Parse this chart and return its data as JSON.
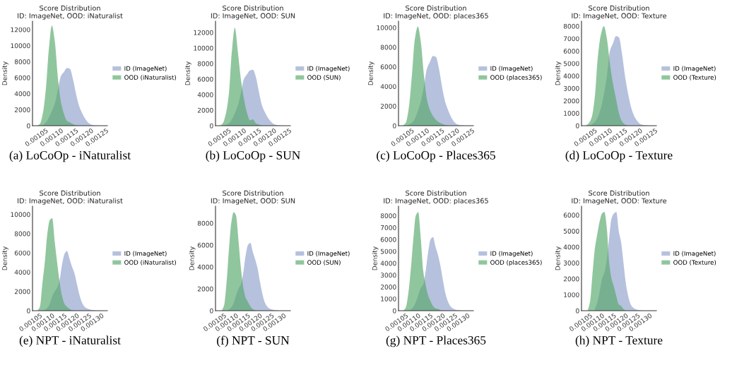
{
  "chart_data": [
    {
      "type": "area",
      "title": "Score Distribution\nID: ImageNet, OOD: iNaturalist",
      "xlabel": "(a) LoCoOp - iNaturalist",
      "ylabel": "Density",
      "legend": "right",
      "xlim": [
        0.001006,
        0.001254
      ],
      "xticks": [
        0.00105,
        {
          "value": 0.0011,
          "label": "0.00110"
        },
        0.00115,
        {
          "value": 0.0012,
          "label": "0.00120"
        },
        0.00125
      ],
      "ylim": [
        0,
        13050
      ],
      "yticks": [
        0,
        2000,
        4000,
        6000,
        8000,
        10000,
        12000
      ],
      "series": [
        {
          "name": "ID (ImageNet)",
          "color": "#8da0cb",
          "x": [
            0.00103,
            0.00104,
            0.00105,
            0.00106,
            0.00107,
            0.00108,
            0.00109,
            0.0011,
            0.00111,
            0.00112,
            0.00113,
            0.00114,
            0.00115,
            0.00116,
            0.00117,
            0.00118,
            0.00119,
            0.0012,
            0.00121,
            0.00122,
            0.00123
          ],
          "values": [
            0,
            100,
            400,
            1000,
            1800,
            2800,
            4500,
            6200,
            6700,
            7200,
            7100,
            5800,
            4000,
            2500,
            1600,
            900,
            400,
            150,
            50,
            20,
            0
          ]
        },
        {
          "name": "OOD (iNaturalist)",
          "color": "#55a868",
          "x": [
            0.00102,
            0.00103,
            0.00104,
            0.00105,
            0.00106,
            0.00107,
            0.00108,
            0.00109,
            0.0011,
            0.00111,
            0.00112,
            0.00113,
            0.00114,
            0.00115,
            0.00116
          ],
          "values": [
            0,
            200,
            1500,
            4500,
            9500,
            12500,
            10500,
            6000,
            3000,
            1500,
            600,
            400,
            200,
            50,
            0
          ]
        }
      ]
    },
    {
      "type": "area",
      "title": "Score Distribution\nID: ImageNet, OOD: SUN",
      "xlabel": "(b) LoCoOp - SUN",
      "ylabel": "Density",
      "legend": "right",
      "xlim": [
        0.001006,
        0.001254
      ],
      "xticks": [
        0.00105,
        {
          "value": 0.0011,
          "label": "0.00110"
        },
        0.00115,
        {
          "value": 0.0012,
          "label": "0.00120"
        },
        0.00125
      ],
      "ylim": [
        0,
        13450
      ],
      "yticks": [
        0,
        2000,
        4000,
        6000,
        8000,
        10000,
        12000
      ],
      "series": [
        {
          "name": "ID (ImageNet)",
          "color": "#8da0cb",
          "x": [
            0.00103,
            0.00104,
            0.00105,
            0.00106,
            0.00107,
            0.00108,
            0.00109,
            0.0011,
            0.00111,
            0.00112,
            0.00113,
            0.00114,
            0.00115,
            0.00116,
            0.00117,
            0.00118,
            0.00119,
            0.0012,
            0.00121,
            0.00122,
            0.00123
          ],
          "values": [
            0,
            100,
            300,
            800,
            1600,
            2600,
            4200,
            6000,
            6600,
            7100,
            7200,
            6200,
            4300,
            2600,
            1700,
            1000,
            500,
            200,
            80,
            30,
            0
          ]
        },
        {
          "name": "OOD (SUN)",
          "color": "#55a868",
          "x": [
            0.00102,
            0.00103,
            0.00104,
            0.00105,
            0.00106,
            0.00107,
            0.00108,
            0.00109,
            0.0011,
            0.00111,
            0.00112,
            0.00113,
            0.00114,
            0.00115,
            0.00116
          ],
          "values": [
            0,
            300,
            1500,
            4000,
            9500,
            12600,
            9500,
            6000,
            3500,
            1700,
            700,
            800,
            300,
            150,
            0
          ]
        }
      ]
    },
    {
      "type": "area",
      "title": "Score Distribution\nID: ImageNet, OOD: places365",
      "xlabel": "(c) LoCoOp - Places365",
      "ylabel": "Density",
      "legend": "right",
      "xlim": [
        0.001006,
        0.001254
      ],
      "xticks": [
        0.00105,
        {
          "value": 0.0011,
          "label": "0.00110"
        },
        0.00115,
        {
          "value": 0.0012,
          "label": "0.00120"
        },
        0.00125
      ],
      "ylim": [
        0,
        10650
      ],
      "yticks": [
        0,
        2000,
        4000,
        6000,
        8000,
        10000
      ],
      "series": [
        {
          "name": "ID (ImageNet)",
          "color": "#8da0cb",
          "x": [
            0.00103,
            0.00104,
            0.00105,
            0.00106,
            0.00107,
            0.00108,
            0.00109,
            0.0011,
            0.00111,
            0.00112,
            0.00113,
            0.00114,
            0.00115,
            0.00116,
            0.00117,
            0.00118,
            0.00119,
            0.0012,
            0.00121,
            0.00122,
            0.00123
          ],
          "values": [
            0,
            100,
            300,
            700,
            1500,
            2500,
            4000,
            5800,
            6500,
            7100,
            7000,
            5800,
            4000,
            2500,
            1600,
            900,
            400,
            150,
            60,
            30,
            0
          ]
        },
        {
          "name": "OOD (places365)",
          "color": "#55a868",
          "x": [
            0.00102,
            0.00103,
            0.00104,
            0.00105,
            0.00106,
            0.00107,
            0.00108,
            0.00109,
            0.0011,
            0.00111,
            0.00112,
            0.00113,
            0.00114,
            0.00115,
            0.00116,
            0.00117
          ],
          "values": [
            0,
            300,
            1800,
            5000,
            8800,
            10100,
            8500,
            5200,
            2700,
            1600,
            1000,
            600,
            350,
            200,
            80,
            0
          ]
        }
      ]
    },
    {
      "type": "area",
      "title": "Score Distribution\nID: ImageNet, OOD: Texture",
      "xlabel": "(d) LoCoOp - Texture",
      "ylabel": "Density",
      "legend": "right",
      "xlim": [
        0.001006,
        0.001254
      ],
      "xticks": [
        0.00105,
        {
          "value": 0.0011,
          "label": "0.00110"
        },
        0.00115,
        {
          "value": 0.0012,
          "label": "0.00120"
        },
        0.00125
      ],
      "ylim": [
        0,
        8400
      ],
      "yticks": [
        0,
        1000,
        2000,
        3000,
        4000,
        5000,
        6000,
        7000,
        8000
      ],
      "series": [
        {
          "name": "ID (ImageNet)",
          "color": "#8da0cb",
          "x": [
            0.00103,
            0.00104,
            0.00105,
            0.00106,
            0.00107,
            0.00108,
            0.00109,
            0.0011,
            0.00111,
            0.00112,
            0.00113,
            0.00114,
            0.00115,
            0.00116,
            0.00117,
            0.00118,
            0.00119,
            0.0012,
            0.00121,
            0.00122,
            0.00123
          ],
          "values": [
            0,
            100,
            300,
            700,
            1400,
            2500,
            4000,
            6000,
            6600,
            7200,
            7100,
            5800,
            4000,
            2600,
            1500,
            800,
            400,
            150,
            60,
            30,
            0
          ]
        },
        {
          "name": "OOD (Texture)",
          "color": "#55a868",
          "x": [
            0.00102,
            0.00103,
            0.00104,
            0.00105,
            0.00106,
            0.00107,
            0.00108,
            0.00109,
            0.0011,
            0.00111,
            0.00112,
            0.00113,
            0.00114,
            0.00115,
            0.00116
          ],
          "values": [
            0,
            200,
            700,
            2300,
            5500,
            7300,
            8000,
            7000,
            5000,
            3400,
            2200,
            1000,
            350,
            100,
            0
          ]
        }
      ]
    },
    {
      "type": "area",
      "title": "Score Distribution\nID: ImageNet, OOD: iNaturalist",
      "xlabel": "(e) NPT - iNaturalist",
      "ylabel": "Density",
      "legend": "right",
      "xlim": [
        0.00102,
        0.001324
      ],
      "xticks": [
        0.00105,
        {
          "value": 0.0011,
          "label": "0.00110"
        },
        0.00115,
        {
          "value": 0.0012,
          "label": "0.00120"
        },
        0.00125,
        {
          "value": 0.0013,
          "label": "0.00130"
        }
      ],
      "ylim": [
        0,
        10850
      ],
      "yticks": [
        0,
        2000,
        4000,
        6000,
        8000,
        10000
      ],
      "series": [
        {
          "name": "ID (ImageNet)",
          "color": "#8da0cb",
          "x": [
            0.00106,
            0.00107,
            0.00108,
            0.00109,
            0.0011,
            0.00111,
            0.00112,
            0.00113,
            0.00114,
            0.00115,
            0.00116,
            0.00117,
            0.00118,
            0.00119,
            0.0012,
            0.00121,
            0.00122,
            0.00123,
            0.00124,
            0.00125,
            0.00126,
            0.00127,
            0.00128,
            0.00129
          ],
          "values": [
            0,
            100,
            300,
            700,
            1500,
            2000,
            2400,
            3200,
            4800,
            5900,
            6200,
            5400,
            4600,
            3900,
            2800,
            1700,
            900,
            450,
            250,
            150,
            80,
            40,
            10,
            0
          ]
        },
        {
          "name": "OOD (iNaturalist)",
          "color": "#55a868",
          "x": [
            0.00104,
            0.00105,
            0.00106,
            0.00107,
            0.00108,
            0.00109,
            0.0011,
            0.00111,
            0.00112,
            0.00113,
            0.00114,
            0.00115,
            0.00116,
            0.00117,
            0.00118,
            0.00119
          ],
          "values": [
            0,
            400,
            2800,
            5050,
            7950,
            9400,
            9600,
            7200,
            5000,
            3000,
            1500,
            700,
            400,
            200,
            50,
            0
          ]
        }
      ]
    },
    {
      "type": "area",
      "title": "Score Distribution\nID: ImageNet, OOD: SUN",
      "xlabel": "(f) NPT - SUN",
      "ylabel": "Density",
      "legend": "right",
      "xlim": [
        0.001014,
        0.001328
      ],
      "xticks": [
        0.00105,
        {
          "value": 0.0011,
          "label": "0.00110"
        },
        0.00115,
        {
          "value": 0.0012,
          "label": "0.00120"
        },
        0.00125,
        {
          "value": 0.0013,
          "label": "0.00130"
        }
      ],
      "ylim": [
        0,
        9550
      ],
      "yticks": [
        0,
        2000,
        4000,
        6000,
        8000
      ],
      "series": [
        {
          "name": "ID (ImageNet)",
          "color": "#8da0cb",
          "x": [
            0.00106,
            0.00107,
            0.00108,
            0.00109,
            0.0011,
            0.00111,
            0.00112,
            0.00113,
            0.00114,
            0.00115,
            0.00116,
            0.00117,
            0.00118,
            0.00119,
            0.0012,
            0.00121,
            0.00122,
            0.00123,
            0.00124,
            0.00125,
            0.00126,
            0.00127,
            0.00128
          ],
          "values": [
            0,
            100,
            300,
            700,
            1400,
            2000,
            2400,
            3400,
            5000,
            6000,
            6200,
            5400,
            4700,
            3900,
            2700,
            1600,
            800,
            400,
            200,
            120,
            60,
            30,
            0
          ]
        },
        {
          "name": "OOD (SUN)",
          "color": "#55a868",
          "x": [
            0.00104,
            0.00105,
            0.00106,
            0.00107,
            0.00108,
            0.00109,
            0.0011,
            0.00111,
            0.00112,
            0.00113,
            0.00114,
            0.00115,
            0.00116,
            0.00117,
            0.00118,
            0.00119
          ],
          "values": [
            0,
            500,
            2500,
            5500,
            8000,
            9000,
            8700,
            6500,
            4000,
            2200,
            1200,
            800,
            400,
            150,
            50,
            0
          ]
        }
      ]
    },
    {
      "type": "area",
      "title": "Score Distribution\nID: ImageNet, OOD: places365",
      "xlabel": "(g) NPT - Places365",
      "ylabel": "Density",
      "legend": "right",
      "xlim": [
        0.00102,
        0.001324
      ],
      "xticks": [
        0.00105,
        {
          "value": 0.0011,
          "label": "0.00110"
        },
        0.00115,
        {
          "value": 0.0012,
          "label": "0.00120"
        },
        0.00125,
        {
          "value": 0.0013,
          "label": "0.00130"
        }
      ],
      "ylim": [
        0,
        8800
      ],
      "yticks": [
        0,
        1000,
        2000,
        3000,
        4000,
        5000,
        6000,
        7000,
        8000
      ],
      "series": [
        {
          "name": "ID (ImageNet)",
          "color": "#8da0cb",
          "x": [
            0.00106,
            0.00107,
            0.00108,
            0.00109,
            0.0011,
            0.00111,
            0.00112,
            0.00113,
            0.00114,
            0.00115,
            0.00116,
            0.00117,
            0.00118,
            0.00119,
            0.0012,
            0.00121,
            0.00122,
            0.00123,
            0.00124,
            0.00125,
            0.00126,
            0.00127,
            0.00128
          ],
          "values": [
            0,
            100,
            300,
            700,
            1300,
            1900,
            2200,
            3300,
            4900,
            6000,
            6200,
            5400,
            4700,
            3800,
            2600,
            1500,
            800,
            400,
            200,
            100,
            50,
            20,
            0
          ]
        },
        {
          "name": "OOD (places365)",
          "color": "#55a868",
          "x": [
            0.00104,
            0.00105,
            0.00106,
            0.00107,
            0.00108,
            0.00109,
            0.0011,
            0.00111,
            0.00112,
            0.00113,
            0.00114,
            0.00115,
            0.00116,
            0.00117,
            0.00118,
            0.00119,
            0.0012
          ],
          "values": [
            0,
            300,
            1500,
            3500,
            6000,
            8000,
            8300,
            6200,
            3400,
            2200,
            1300,
            800,
            400,
            200,
            150,
            50,
            0
          ]
        }
      ]
    },
    {
      "type": "area",
      "title": "Score Distribution\nID: ImageNet, OOD: Texture",
      "xlabel": "(h) NPT - Texture",
      "ylabel": "Density",
      "legend": "right",
      "xlim": [
        0.001014,
        0.001328
      ],
      "xticks": [
        0.00105,
        {
          "value": 0.0011,
          "label": "0.00110"
        },
        0.00115,
        {
          "value": 0.0012,
          "label": "0.00120"
        },
        0.00125,
        {
          "value": 0.0013,
          "label": "0.00130"
        }
      ],
      "ylim": [
        0,
        6560
      ],
      "yticks": [
        0,
        1000,
        2000,
        3000,
        4000,
        5000,
        6000
      ],
      "series": [
        {
          "name": "ID (ImageNet)",
          "color": "#8da0cb",
          "x": [
            0.00107,
            0.00108,
            0.00109,
            0.0011,
            0.00111,
            0.00112,
            0.00113,
            0.00114,
            0.00115,
            0.00116,
            0.00117,
            0.00118,
            0.00119,
            0.0012,
            0.00121,
            0.00122,
            0.00123,
            0.00124,
            0.00125,
            0.00126,
            0.00127
          ],
          "values": [
            100,
            500,
            1200,
            2000,
            2400,
            3200,
            4600,
            5800,
            6100,
            6200,
            5000,
            4300,
            3000,
            1700,
            900,
            400,
            200,
            100,
            50,
            20,
            0
          ]
        },
        {
          "name": "OOD (Texture)",
          "color": "#55a868",
          "x": [
            0.00104,
            0.00105,
            0.00106,
            0.00107,
            0.00108,
            0.00109,
            0.0011,
            0.00111,
            0.00112,
            0.00113,
            0.00114,
            0.00115,
            0.00116,
            0.00117,
            0.00118,
            0.00119,
            0.0012
          ],
          "values": [
            0,
            600,
            2300,
            3900,
            4800,
            5600,
            6100,
            6200,
            5200,
            3000,
            2000,
            1500,
            900,
            400,
            300,
            100,
            0
          ]
        }
      ]
    }
  ]
}
